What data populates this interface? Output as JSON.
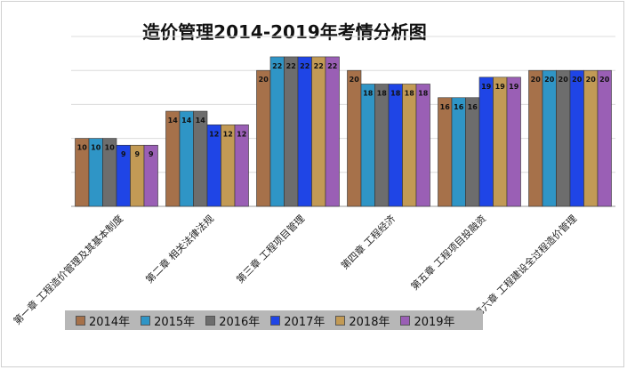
{
  "chart_data": {
    "type": "bar",
    "title": "造价管理2014-2019年考情分析图",
    "categories": [
      "第一章 工程造价管理及其基本制度",
      "第二章 相关法律法规",
      "第三章 工程项目管理",
      "第四章 工程经济",
      "第五章 工程项目投融资",
      "第六章 工程建设全过程造价管理"
    ],
    "series": [
      {
        "name": "2014年",
        "color": "#a6714a",
        "values": [
          10,
          14,
          20,
          20,
          16,
          20
        ]
      },
      {
        "name": "2015年",
        "color": "#2f95c6",
        "values": [
          10,
          14,
          22,
          18,
          16,
          20
        ]
      },
      {
        "name": "2016年",
        "color": "#6d6d6d",
        "values": [
          10,
          14,
          22,
          18,
          16,
          20
        ]
      },
      {
        "name": "2017年",
        "color": "#1f45e6",
        "values": [
          9,
          12,
          22,
          18,
          19,
          20
        ]
      },
      {
        "name": "2018年",
        "color": "#c29a55",
        "values": [
          9,
          12,
          22,
          18,
          19,
          20
        ]
      },
      {
        "name": "2019年",
        "color": "#9a5fb5",
        "values": [
          9,
          12,
          22,
          18,
          19,
          20
        ]
      }
    ],
    "ylim": [
      0,
      25
    ],
    "grid": true,
    "legend_position": "bottom",
    "data_labels": true
  }
}
